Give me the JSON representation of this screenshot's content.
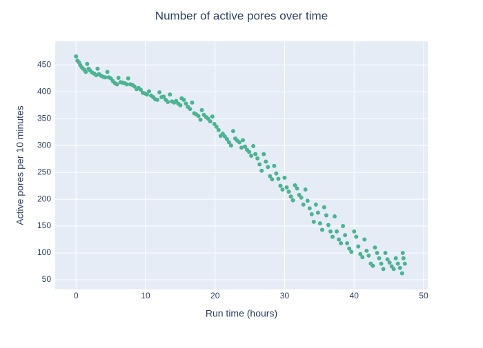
{
  "chart_data": {
    "type": "scatter",
    "title": "Number of active pores over time",
    "x_label": "Run time (hours)",
    "y_label": "Active pores per 10 minutes",
    "color": "#4cb391",
    "grid": true,
    "xlim": [
      -3,
      50.6
    ],
    "ylim": [
      32,
      494
    ],
    "xticks": [
      0,
      10,
      20,
      30,
      40,
      50
    ],
    "yticks": [
      50,
      100,
      150,
      200,
      250,
      300,
      350,
      400,
      450
    ],
    "x": [
      0.0,
      0.2,
      0.4,
      0.6,
      0.8,
      1.0,
      1.2,
      1.4,
      1.6,
      1.8,
      2.0,
      2.3,
      2.6,
      2.9,
      3.1,
      3.3,
      3.6,
      3.9,
      4.2,
      4.5,
      4.7,
      5.0,
      5.3,
      5.6,
      5.9,
      6.1,
      6.4,
      6.7,
      7.0,
      7.3,
      7.5,
      7.8,
      8.1,
      8.4,
      8.7,
      9.0,
      9.3,
      9.6,
      9.9,
      10.2,
      10.5,
      10.8,
      11.1,
      11.4,
      11.7,
      12.0,
      12.3,
      12.6,
      12.9,
      13.2,
      13.5,
      13.8,
      14.1,
      14.4,
      14.7,
      15.0,
      15.2,
      15.5,
      15.8,
      16.1,
      16.4,
      16.7,
      17.0,
      17.3,
      17.6,
      17.9,
      18.1,
      18.4,
      18.7,
      19.0,
      19.3,
      19.6,
      19.9,
      20.2,
      20.5,
      20.8,
      21.1,
      21.4,
      21.7,
      22.0,
      22.3,
      22.6,
      22.9,
      23.2,
      23.5,
      23.8,
      24.0,
      24.3,
      24.6,
      24.9,
      25.2,
      25.5,
      25.8,
      26.1,
      26.4,
      26.7,
      27.0,
      27.3,
      27.6,
      27.9,
      28.2,
      28.5,
      28.8,
      29.1,
      29.4,
      29.7,
      30.0,
      30.3,
      30.6,
      30.9,
      31.2,
      31.5,
      31.8,
      32.1,
      32.4,
      32.7,
      33.0,
      33.3,
      33.6,
      33.9,
      34.2,
      34.5,
      34.8,
      35.1,
      35.4,
      35.7,
      36.0,
      36.3,
      36.6,
      36.9,
      37.2,
      37.5,
      37.8,
      38.1,
      38.4,
      38.7,
      39.0,
      39.3,
      39.6,
      40.0,
      40.3,
      40.6,
      40.9,
      41.2,
      41.5,
      41.8,
      42.1,
      42.4,
      42.7,
      43.0,
      43.3,
      43.6,
      43.9,
      44.2,
      44.5,
      44.8,
      45.1,
      45.4,
      45.7,
      46.0,
      46.3,
      46.6,
      46.9,
      47.0,
      47.1,
      47.3
    ],
    "values": [
      466,
      458,
      455,
      450,
      446,
      443,
      441,
      437,
      452,
      443,
      440,
      436,
      434,
      431,
      443,
      433,
      430,
      428,
      427,
      437,
      427,
      425,
      420,
      416,
      414,
      426,
      418,
      417,
      416,
      414,
      425,
      414,
      413,
      410,
      405,
      407,
      404,
      398,
      397,
      395,
      401,
      393,
      390,
      386,
      385,
      399,
      390,
      391,
      385,
      381,
      395,
      382,
      380,
      383,
      378,
      375,
      388,
      385,
      378,
      372,
      368,
      380,
      360,
      358,
      355,
      348,
      366,
      357,
      353,
      350,
      345,
      354,
      340,
      335,
      329,
      318,
      322,
      317,
      312,
      306,
      300,
      327,
      313,
      309,
      306,
      296,
      310,
      298,
      292,
      288,
      281,
      299,
      284,
      276,
      265,
      253,
      284,
      270,
      260,
      243,
      237,
      262,
      248,
      238,
      225,
      218,
      240,
      222,
      214,
      205,
      198,
      226,
      220,
      208,
      203,
      190,
      218,
      197,
      183,
      172,
      158,
      190,
      175,
      155,
      143,
      185,
      170,
      152,
      140,
      130,
      168,
      140,
      125,
      118,
      150,
      133,
      118,
      108,
      102,
      140,
      130,
      112,
      98,
      92,
      125,
      104,
      95,
      80,
      76,
      110,
      100,
      90,
      80,
      70,
      100,
      88,
      82,
      75,
      70,
      90,
      80,
      72,
      62,
      100,
      90,
      80
    ]
  }
}
